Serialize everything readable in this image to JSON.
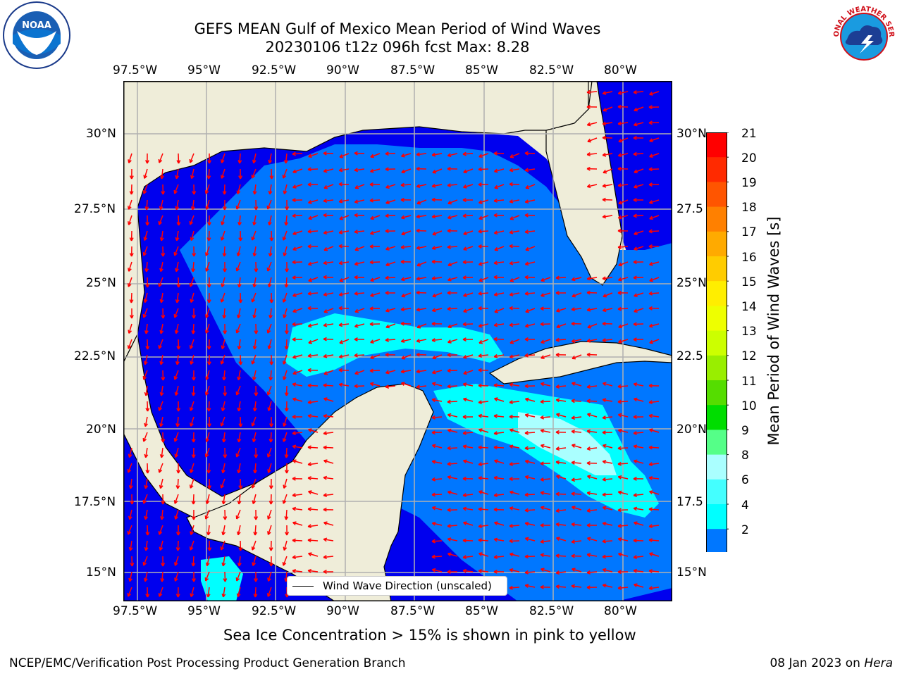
{
  "title": {
    "line1": "GEFS MEAN Gulf of Mexico Mean Period of Wind Waves",
    "line2": "20230106 t12z 096h fcst   Max: 8.28"
  },
  "map": {
    "lon_labels": [
      "97.5°W",
      "95°W",
      "92.5°W",
      "90°W",
      "87.5°W",
      "85°W",
      "82.5°W",
      "80°W"
    ],
    "lat_labels_left": [
      "30°N",
      "27.5°N",
      "25°N",
      "22.5°N",
      "20°N",
      "17.5°N",
      "15°N"
    ],
    "lat_labels_right": [
      "30°N",
      "27.5",
      "25°N",
      "22.5",
      "20°N",
      "17.5",
      "15°N"
    ],
    "legend": "Wind Wave Direction (unscaled)",
    "colors": {
      "land": "#efedd9",
      "coast": "#000000",
      "arrow": "#ff0000",
      "grid": "#b0b0b0",
      "band_2": "#0000ee",
      "band_4": "#0077ff",
      "band_6": "#00ffff"
    }
  },
  "colorbar": {
    "label": "Mean Period of Wind Waves [s]",
    "ticks": [
      "21",
      "20",
      "19",
      "18",
      "17",
      "16",
      "15",
      "14",
      "13",
      "12",
      "11",
      "10",
      "9",
      "8",
      "6",
      "4",
      "2"
    ],
    "colors": [
      "#ff0000",
      "#ff2a00",
      "#ff5500",
      "#ff8000",
      "#ffaa00",
      "#ffcc00",
      "#ffee00",
      "#eeff00",
      "#ccff00",
      "#99ee00",
      "#55dd00",
      "#00dd00",
      "#55ff88",
      "#aaffff",
      "#44ffff",
      "#00ffff",
      "#0077ff"
    ],
    "extend_color": "#0000ee"
  },
  "footer": {
    "note": "Sea Ice Concentration > 15% is shown in pink to yellow",
    "credit": "NCEP/EMC/Verification Post Processing Product Generation Branch",
    "date": "08 Jan 2023 on",
    "machine": "Hera"
  },
  "logos": {
    "left": "NOAA",
    "right": "NATIONAL WEATHER SERVICE"
  }
}
